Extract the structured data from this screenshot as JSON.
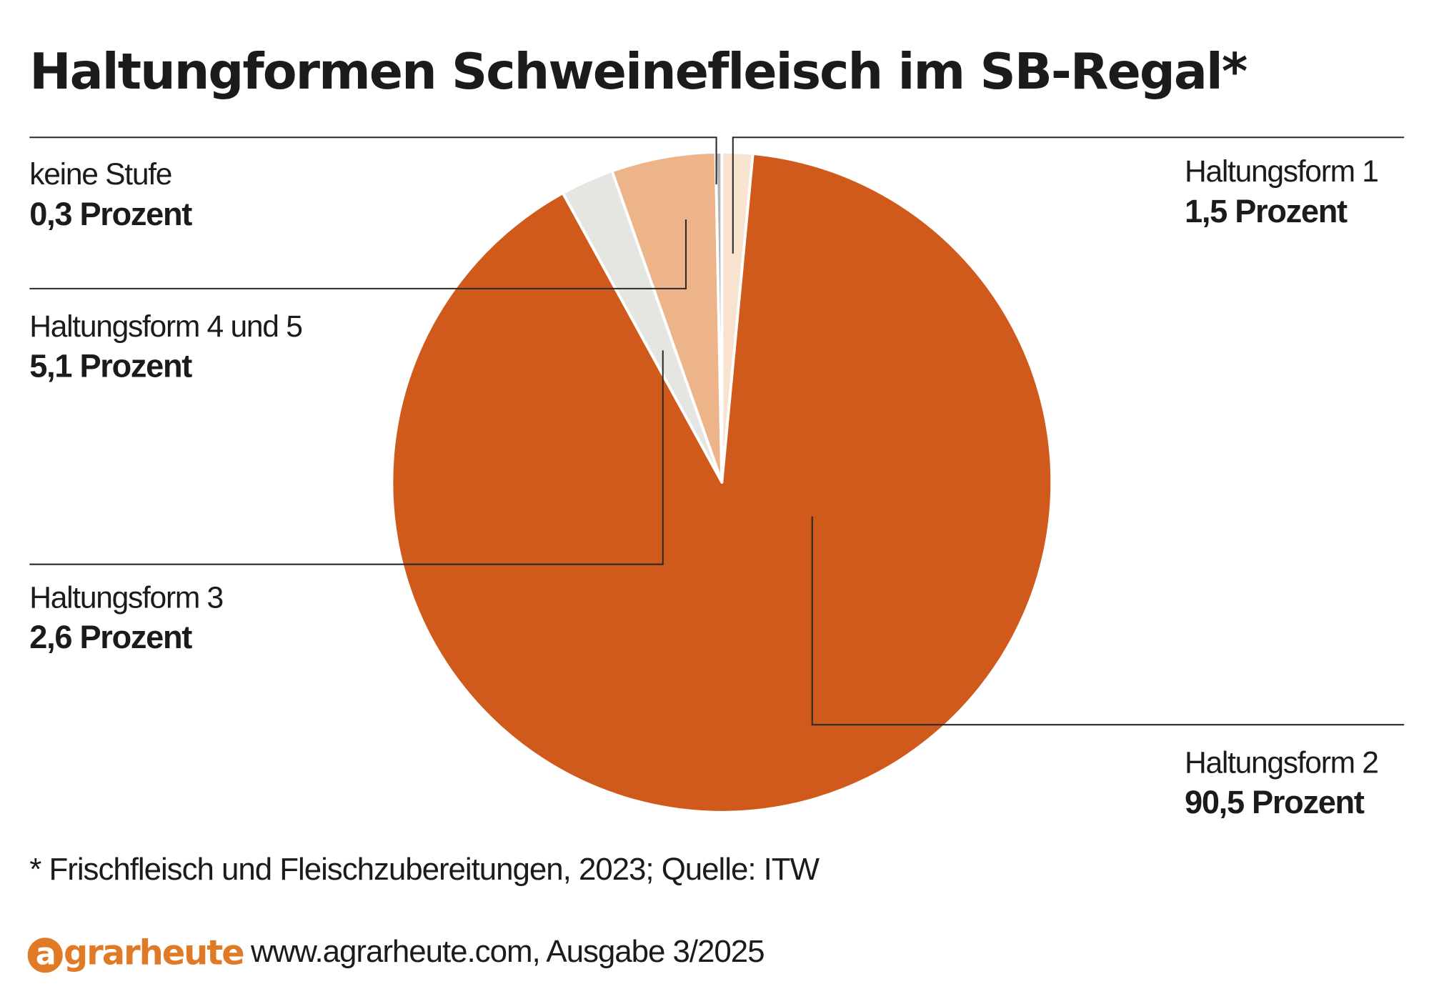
{
  "title": "Haltungformen Schweinefleisch im SB-Regal*",
  "chart_data": {
    "type": "pie",
    "title": "Haltungformen Schweinefleisch im SB-Regal*",
    "slices": [
      {
        "label": "Haltungsform 1",
        "value_text": "1,5 Prozent",
        "value": 1.5,
        "color": "#f7e3cf"
      },
      {
        "label": "Haltungsform 2",
        "value_text": "90,5 Prozent",
        "value": 90.5,
        "color": "#d05a1b"
      },
      {
        "label": "Haltungsform 3",
        "value_text": "2,6 Prozent",
        "value": 2.6,
        "color": "#e5e5e2"
      },
      {
        "label": "Haltungsform 4 und 5",
        "value_text": "5,1 Prozent",
        "value": 5.1,
        "color": "#eeb489"
      },
      {
        "label": "keine Stufe",
        "value_text": "0,3 Prozent",
        "value": 0.3,
        "color": "#b4b4b4"
      }
    ],
    "start": "12 o'clock",
    "direction": "clockwise",
    "legend": "none",
    "labels": "callouts"
  },
  "footnote": "* Frischfleisch und Fleischzubereitungen, 2023; Quelle: ITW",
  "brand": {
    "a": "a",
    "rest": "grarheute",
    "color": "#e07a26"
  },
  "source": "www.agrarheute.com, Ausgabe 3/2025",
  "colors": {
    "text": "#1b1b1b",
    "leader": "#2a2a2a"
  }
}
